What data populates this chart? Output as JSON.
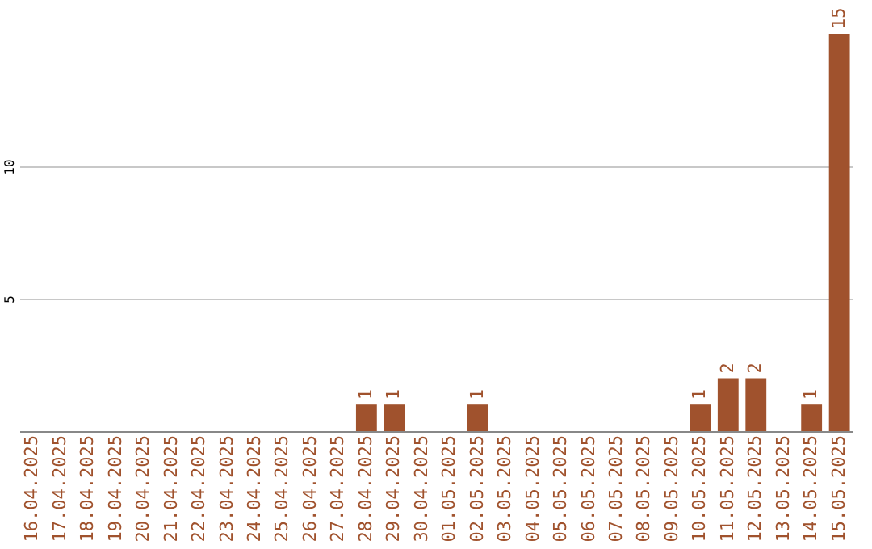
{
  "chart_data": {
    "type": "bar",
    "categories": [
      "16.04.2025",
      "17.04.2025",
      "18.04.2025",
      "19.04.2025",
      "20.04.2025",
      "21.04.2025",
      "22.04.2025",
      "23.04.2025",
      "24.04.2025",
      "25.04.2025",
      "26.04.2025",
      "27.04.2025",
      "28.04.2025",
      "29.04.2025",
      "30.04.2025",
      "01.05.2025",
      "02.05.2025",
      "03.05.2025",
      "04.05.2025",
      "05.05.2025",
      "06.05.2025",
      "07.05.2025",
      "08.05.2025",
      "09.05.2025",
      "10.05.2025",
      "11.05.2025",
      "12.05.2025",
      "13.05.2025",
      "14.05.2025",
      "15.05.2025"
    ],
    "values": [
      0,
      0,
      0,
      0,
      0,
      0,
      0,
      0,
      0,
      0,
      0,
      0,
      1,
      1,
      0,
      0,
      1,
      0,
      0,
      0,
      0,
      0,
      0,
      0,
      1,
      2,
      2,
      0,
      1,
      15
    ],
    "value_labels": [
      null,
      null,
      null,
      null,
      null,
      null,
      null,
      null,
      null,
      null,
      null,
      null,
      "1",
      "1",
      null,
      null,
      "1",
      null,
      null,
      null,
      null,
      null,
      null,
      null,
      "1",
      "2",
      "2",
      null,
      "1",
      "15"
    ],
    "color": "#a0522d",
    "ylim": [
      0,
      15
    ],
    "yticks": [
      5,
      10
    ],
    "grid": "y"
  }
}
